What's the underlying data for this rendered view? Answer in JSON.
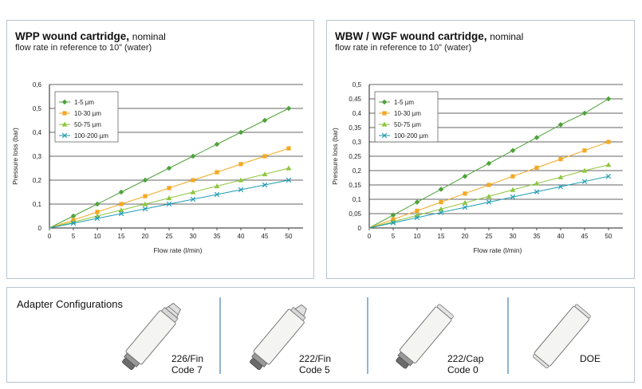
{
  "charts": [
    {
      "title": "WPP wound cartridge,",
      "title_suffix": "nominal",
      "subtitle": "flow rate in reference to 10” (water)",
      "y_tick_labels": [
        "0",
        "0,1",
        "0,2",
        "0,3",
        "0,4",
        "0,5",
        "0,6"
      ]
    },
    {
      "title": "WBW / WGF wound cartridge,",
      "title_suffix": "nominal",
      "subtitle": "flow rate in reference to 10” (water)",
      "y_tick_labels": [
        "0",
        "0,05",
        "0,1",
        "0,15",
        "0,2",
        "0,25",
        "0,3",
        "0,35",
        "0,4",
        "0,45",
        "0,5"
      ]
    }
  ],
  "chart_data": [
    {
      "type": "line",
      "title": "WPP wound cartridge, nominal",
      "subtitle": "flow rate in reference to 10” (water)",
      "xlabel": "Flow rate (l/min)",
      "ylabel": "Pressure loss (bar)",
      "xlim": [
        0,
        53
      ],
      "ylim": [
        0,
        0.6
      ],
      "x_ticks": [
        0,
        5,
        10,
        15,
        20,
        25,
        30,
        35,
        40,
        45,
        50
      ],
      "y_ticks": [
        0,
        0.1,
        0.2,
        0.3,
        0.4,
        0.5,
        0.6
      ],
      "grid": "horizontal",
      "legend_position": "top-left",
      "series": [
        {
          "name": "1-5 µm",
          "color": "#4ea23a",
          "marker": "diamond",
          "x": [
            0,
            5,
            10,
            15,
            20,
            25,
            30,
            35,
            40,
            45,
            50
          ],
          "y": [
            0,
            0.05,
            0.1,
            0.15,
            0.2,
            0.25,
            0.3,
            0.35,
            0.4,
            0.45,
            0.5
          ]
        },
        {
          "name": "10-30 µm",
          "color": "#f3a823",
          "marker": "square",
          "x": [
            0,
            5,
            10,
            15,
            20,
            25,
            30,
            35,
            40,
            45,
            50
          ],
          "y": [
            0,
            0.033,
            0.067,
            0.1,
            0.133,
            0.167,
            0.2,
            0.233,
            0.267,
            0.3,
            0.333
          ]
        },
        {
          "name": "50-75 µm",
          "color": "#8ec63f",
          "marker": "triangle",
          "x": [
            0,
            5,
            10,
            15,
            20,
            25,
            30,
            35,
            40,
            45,
            50
          ],
          "y": [
            0,
            0.025,
            0.05,
            0.075,
            0.1,
            0.125,
            0.15,
            0.175,
            0.2,
            0.225,
            0.25
          ]
        },
        {
          "name": "100-200 µm",
          "color": "#1f9bb4",
          "marker": "x",
          "x": [
            0,
            5,
            10,
            15,
            20,
            25,
            30,
            35,
            40,
            45,
            50
          ],
          "y": [
            0,
            0.02,
            0.04,
            0.06,
            0.08,
            0.1,
            0.12,
            0.14,
            0.16,
            0.18,
            0.2
          ]
        }
      ]
    },
    {
      "type": "line",
      "title": "WBW / WGF wound cartridge, nominal",
      "subtitle": "flow rate in reference to 10” (water)",
      "xlabel": "Flow rate (l/min)",
      "ylabel": "Pressure loss (bar)",
      "xlim": [
        0,
        53
      ],
      "ylim": [
        0,
        0.5
      ],
      "x_ticks": [
        0,
        5,
        10,
        15,
        20,
        25,
        30,
        35,
        40,
        45,
        50
      ],
      "y_ticks": [
        0,
        0.05,
        0.1,
        0.15,
        0.2,
        0.25,
        0.3,
        0.35,
        0.4,
        0.45,
        0.5
      ],
      "grid": "horizontal",
      "legend_position": "top-left",
      "series": [
        {
          "name": "1-5 µm",
          "color": "#4ea23a",
          "marker": "diamond",
          "x": [
            0,
            5,
            10,
            15,
            20,
            25,
            30,
            35,
            40,
            45,
            50
          ],
          "y": [
            0,
            0.045,
            0.09,
            0.135,
            0.18,
            0.225,
            0.27,
            0.315,
            0.36,
            0.4,
            0.45
          ]
        },
        {
          "name": "10-30 µm",
          "color": "#f3a823",
          "marker": "square",
          "x": [
            0,
            5,
            10,
            15,
            20,
            25,
            30,
            35,
            40,
            45,
            50
          ],
          "y": [
            0,
            0.03,
            0.06,
            0.09,
            0.12,
            0.15,
            0.18,
            0.21,
            0.24,
            0.27,
            0.3
          ]
        },
        {
          "name": "50-75 µm",
          "color": "#8ec63f",
          "marker": "triangle",
          "x": [
            0,
            5,
            10,
            15,
            20,
            25,
            30,
            35,
            40,
            45,
            50
          ],
          "y": [
            0,
            0.022,
            0.044,
            0.066,
            0.088,
            0.11,
            0.133,
            0.155,
            0.177,
            0.2,
            0.22
          ]
        },
        {
          "name": "100-200 µm",
          "color": "#1f9bb4",
          "marker": "x",
          "x": [
            0,
            5,
            10,
            15,
            20,
            25,
            30,
            35,
            40,
            45,
            50
          ],
          "y": [
            0,
            0.018,
            0.036,
            0.054,
            0.072,
            0.09,
            0.108,
            0.126,
            0.144,
            0.162,
            0.18
          ]
        }
      ]
    }
  ],
  "adapters": {
    "title": "Adapter Configurations",
    "items": [
      {
        "line1": "226/Fin",
        "line2": "Code 7",
        "icon": "cartridge-226-fin-icon"
      },
      {
        "line1": "222/Fin",
        "line2": "Code 5",
        "icon": "cartridge-222-fin-icon"
      },
      {
        "line1": "222/Cap",
        "line2": "Code 0",
        "icon": "cartridge-222-cap-icon"
      },
      {
        "line1": "DOE",
        "line2": "",
        "icon": "cartridge-doe-icon"
      }
    ]
  }
}
